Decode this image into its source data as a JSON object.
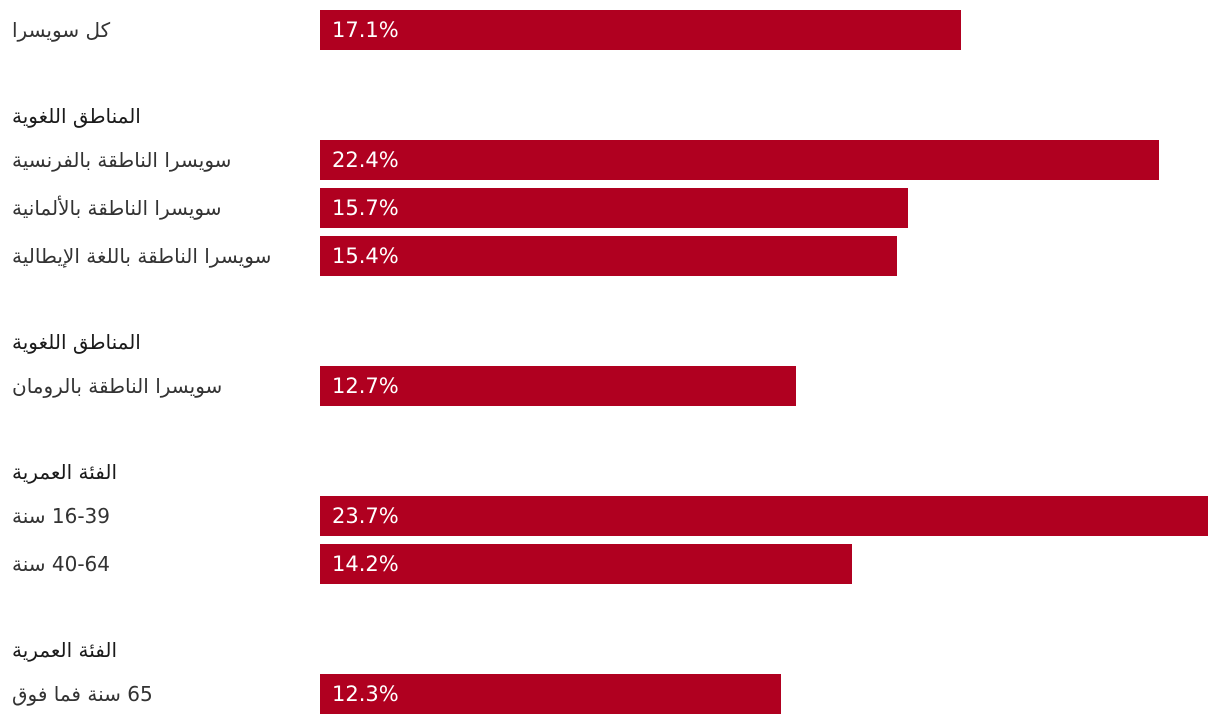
{
  "colors": {
    "bar": "#b00020",
    "bar_text": "#ffffff",
    "label_text": "#333333"
  },
  "chart_data": {
    "type": "bar",
    "orientation": "horizontal",
    "value_unit": "%",
    "xlim": [
      0,
      23.7
    ],
    "grid": false,
    "legend": "none",
    "rows": [
      {
        "kind": "bar",
        "label": "كل سويسرا",
        "value": 17.1,
        "value_label": "17.1%"
      },
      {
        "kind": "heading",
        "label": "المناطق اللغوية"
      },
      {
        "kind": "bar",
        "label": "سويسرا الناطقة بالفرنسية",
        "value": 22.4,
        "value_label": "22.4%"
      },
      {
        "kind": "bar",
        "label": "سويسرا الناطقة بالألمانية",
        "value": 15.7,
        "value_label": "15.7%"
      },
      {
        "kind": "bar",
        "label": "سويسرا الناطقة باللغة الإيطالية",
        "value": 15.4,
        "value_label": "15.4%"
      },
      {
        "kind": "heading",
        "label": "المناطق اللغوية"
      },
      {
        "kind": "bar",
        "label": "سويسرا الناطقة بالرومان",
        "value": 12.7,
        "value_label": "12.7%"
      },
      {
        "kind": "heading",
        "label": "الفئة العمرية"
      },
      {
        "kind": "bar",
        "label": "16-39 سنة",
        "value": 23.7,
        "value_label": "23.7%"
      },
      {
        "kind": "bar",
        "label": "40-64 سنة",
        "value": 14.2,
        "value_label": "14.2%"
      },
      {
        "kind": "heading",
        "label": "الفئة العمرية"
      },
      {
        "kind": "bar",
        "label": "65 سنة فما فوق",
        "value": 12.3,
        "value_label": "12.3%"
      }
    ]
  }
}
